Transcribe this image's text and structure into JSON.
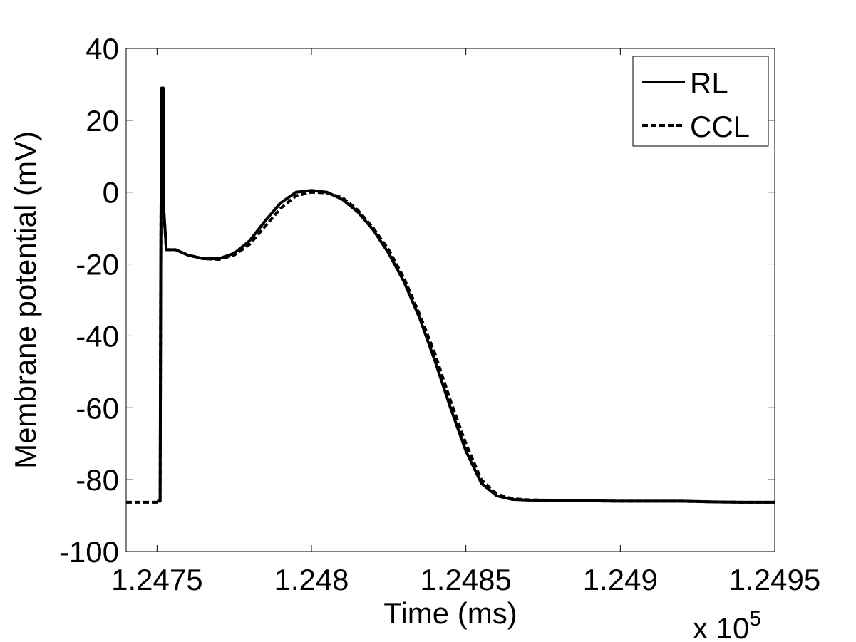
{
  "chart_data": {
    "type": "line",
    "title": "",
    "xlabel": "Time (ms)",
    "ylabel": "Membrane potential (mV)",
    "x_multiplier_base": "x 10",
    "x_multiplier_exp": "5",
    "xlim": [
      1.2474,
      1.2495
    ],
    "ylim": [
      -100,
      40
    ],
    "x_ticks": [
      1.2475,
      1.248,
      1.2485,
      1.249,
      1.2495
    ],
    "x_tick_labels": [
      "1.2475",
      "1.248",
      "1.2485",
      "1.249",
      "1.2495"
    ],
    "y_ticks": [
      -100,
      -80,
      -60,
      -40,
      -20,
      0,
      20,
      40
    ],
    "y_tick_labels": [
      "-100",
      "-80",
      "-60",
      "-40",
      "-20",
      "0",
      "20",
      "40"
    ],
    "grid": false,
    "legend_position": "top-right",
    "series": [
      {
        "name": "RL",
        "style": "solid",
        "color": "#000000",
        "x": [
          1.2475,
          1.24751,
          1.247512,
          1.247515,
          1.247517,
          1.24752,
          1.247522,
          1.24753,
          1.24756,
          1.2476,
          1.24765,
          1.2477,
          1.24775,
          1.2478,
          1.24785,
          1.2479,
          1.24795,
          1.248,
          1.24805,
          1.2481,
          1.24815,
          1.2482,
          1.24825,
          1.2483,
          1.24835,
          1.2484,
          1.24845,
          1.2485,
          1.24855,
          1.2486,
          1.24865,
          1.2487,
          1.2488,
          1.2489,
          1.249,
          1.2491,
          1.2492,
          1.2493,
          1.2494,
          1.2495
        ],
        "y": [
          -86,
          -86,
          -20,
          29,
          20,
          29,
          -5,
          -16,
          -16,
          -17.5,
          -18.5,
          -18.5,
          -17,
          -13.5,
          -8,
          -3,
          0,
          0.5,
          0,
          -2,
          -5.5,
          -10.5,
          -17,
          -25,
          -35,
          -47,
          -60,
          -72,
          -81,
          -84.5,
          -85.5,
          -85.7,
          -85.8,
          -85.9,
          -86,
          -86,
          -86,
          -86.2,
          -86.3,
          -86.3
        ]
      },
      {
        "name": "CCL",
        "style": "dashed",
        "color": "#000000",
        "x": [
          1.2474,
          1.2475,
          1.24751,
          1.247512,
          1.247515,
          1.247517,
          1.24752,
          1.247522,
          1.24753,
          1.24756,
          1.2476,
          1.24765,
          1.2477,
          1.24775,
          1.2478,
          1.24785,
          1.2479,
          1.24795,
          1.248,
          1.24805,
          1.2481,
          1.24815,
          1.2482,
          1.24825,
          1.2483,
          1.24835,
          1.2484,
          1.24845,
          1.2485,
          1.24855,
          1.2486,
          1.24865,
          1.2487,
          1.2488,
          1.2489,
          1.249,
          1.2491,
          1.2492,
          1.2493,
          1.2494,
          1.2495
        ],
        "y": [
          -86.3,
          -86.3,
          -86,
          -20,
          28,
          20,
          28,
          -5,
          -16,
          -16,
          -17.5,
          -18.5,
          -18.7,
          -17.5,
          -14.5,
          -9.5,
          -4.5,
          -1,
          0,
          -0.2,
          -1.5,
          -5,
          -10,
          -16,
          -24,
          -34,
          -45,
          -58,
          -70,
          -80,
          -84,
          -85.3,
          -85.6,
          -85.8,
          -85.9,
          -86,
          -86,
          -86,
          -86.2,
          -86.3,
          -86.3
        ]
      }
    ]
  }
}
